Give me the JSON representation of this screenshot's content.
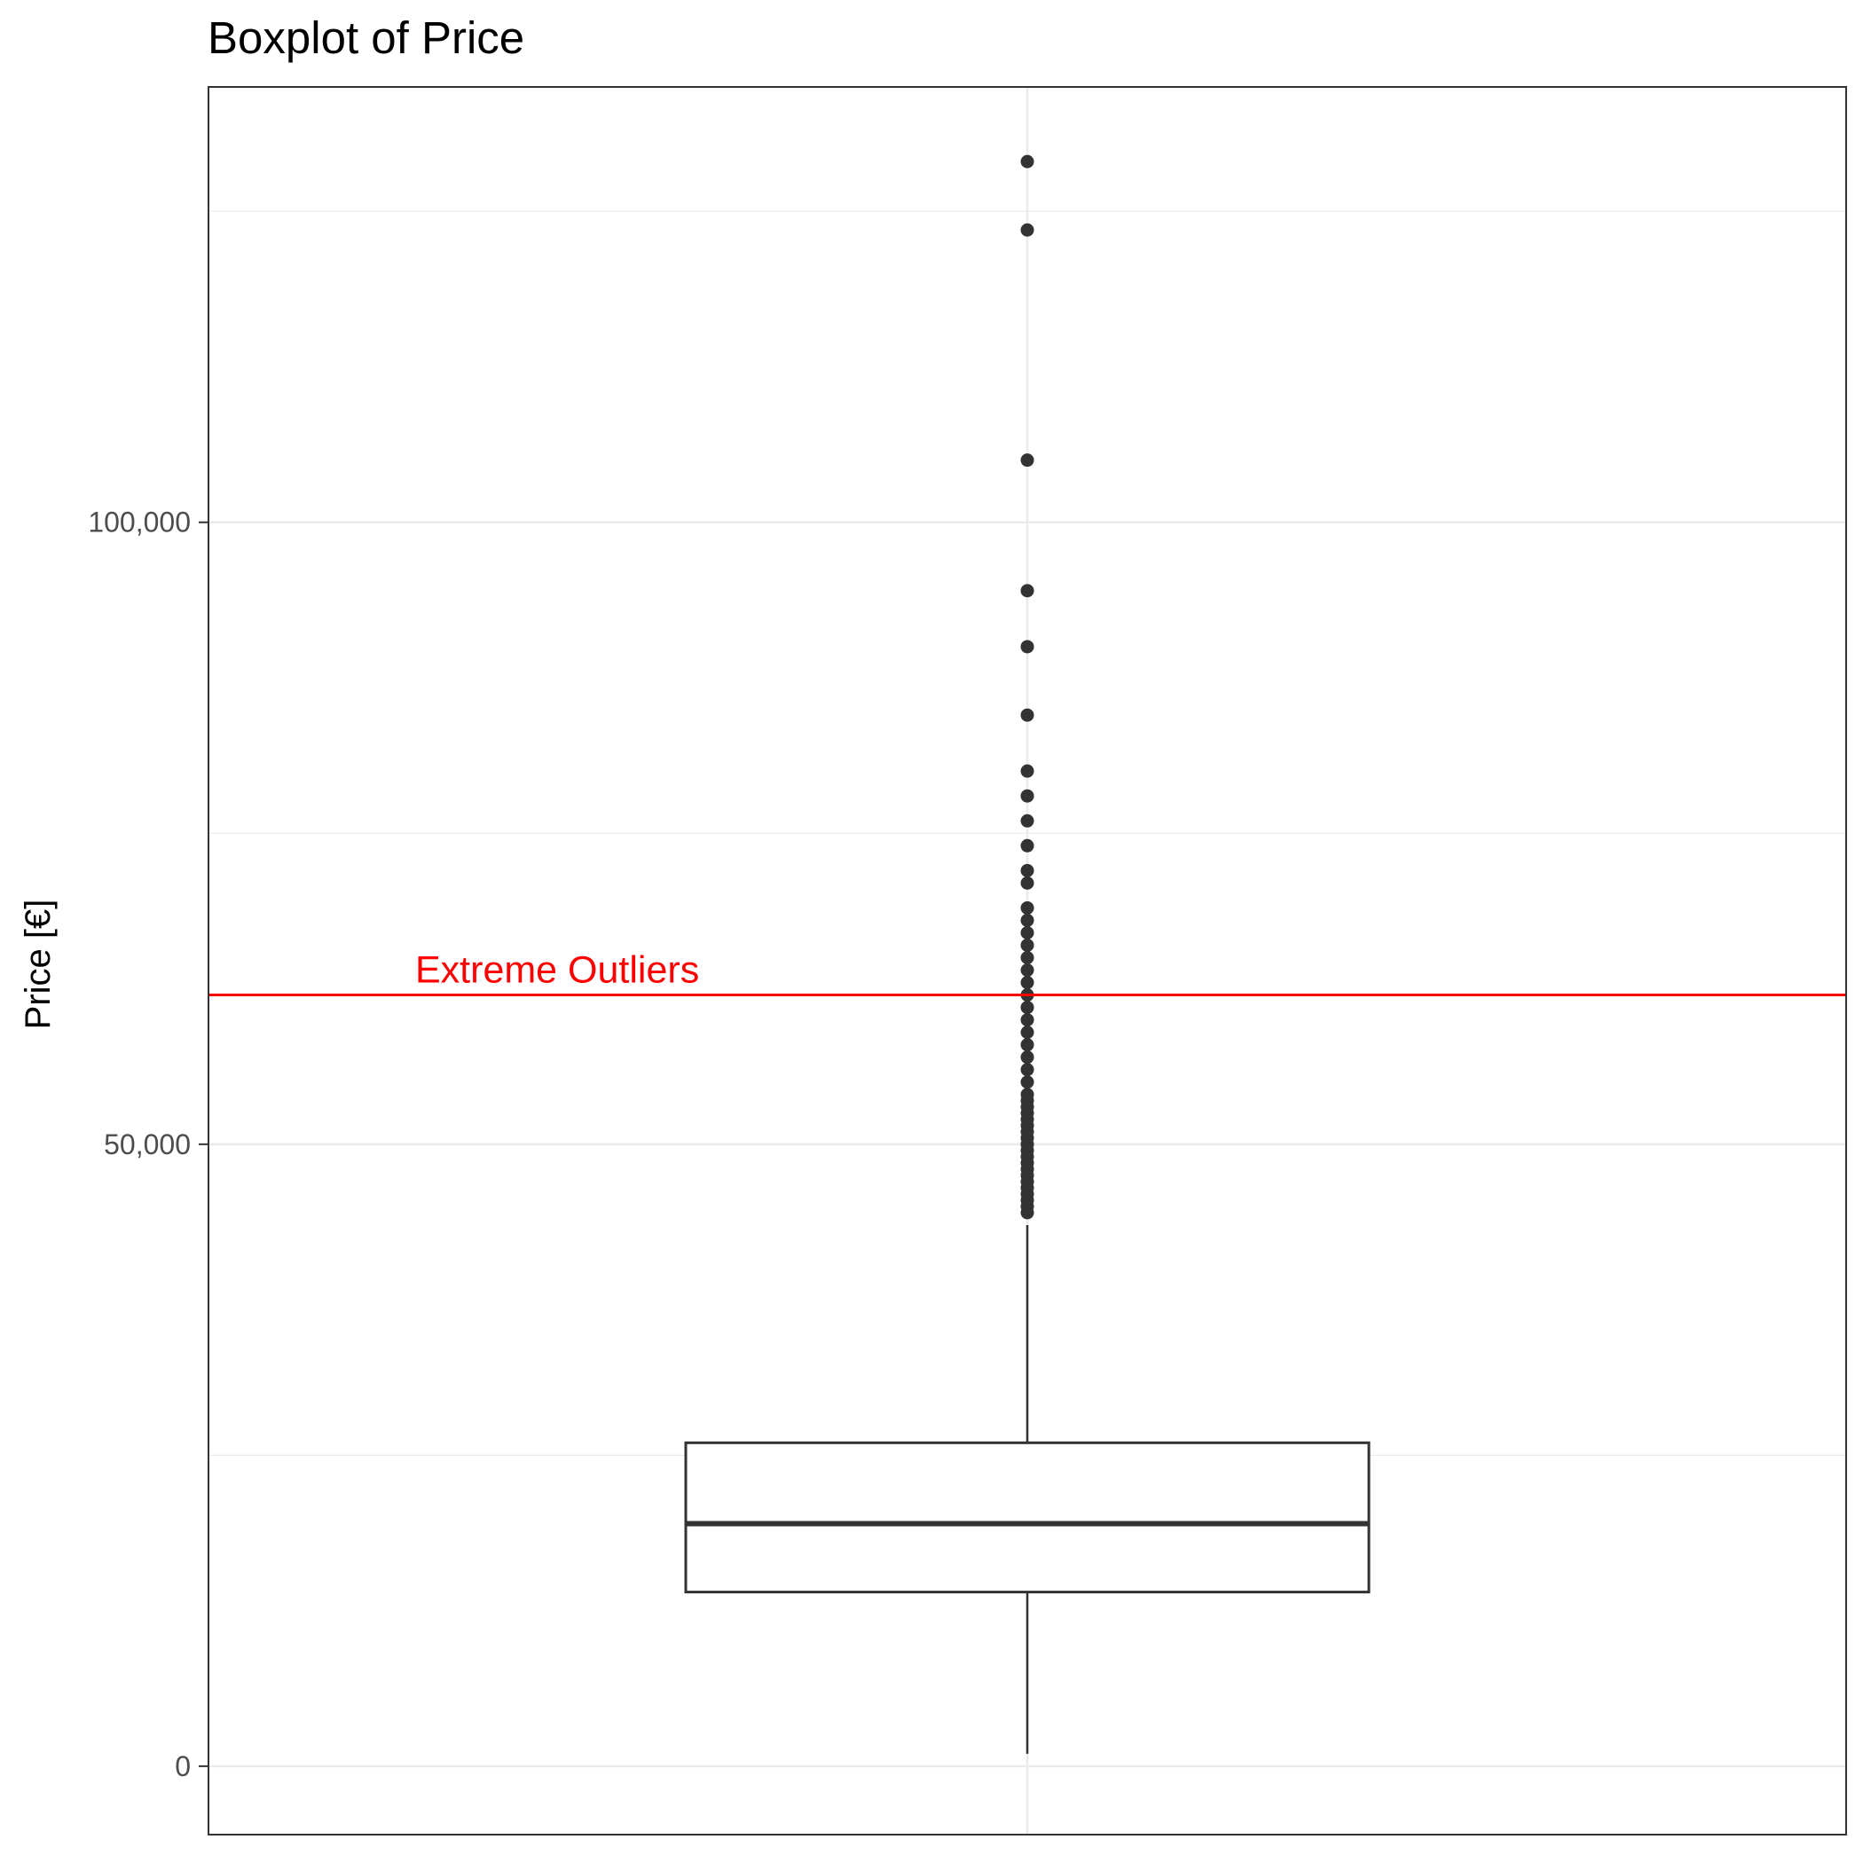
{
  "chart_data": {
    "type": "boxplot",
    "title": "Boxplot of Price",
    "xlabel": "",
    "ylabel": "Price [€]",
    "ylim": [
      -5500,
      135000
    ],
    "yticks": [
      0,
      50000,
      100000
    ],
    "ytick_labels": [
      "0",
      "50,000",
      "100,000"
    ],
    "minor_gridlines": [
      25000,
      75000,
      125000
    ],
    "grid": true,
    "box": {
      "lower_whisker": 1000,
      "q1": 14000,
      "median": 19500,
      "q3": 26000,
      "upper_whisker": 43500,
      "outliers": [
        44500,
        45000,
        45500,
        46000,
        46500,
        47000,
        47500,
        48000,
        48500,
        49000,
        49500,
        50000,
        50500,
        51000,
        51500,
        52000,
        52500,
        53000,
        53500,
        54000,
        55000,
        56000,
        57000,
        58000,
        59000,
        60000,
        61000,
        62000,
        63000,
        64000,
        65000,
        66000,
        67000,
        68000,
        69000,
        71000,
        72000,
        74000,
        76000,
        78000,
        80000,
        84500,
        90000,
        94500,
        105000,
        123500,
        129000
      ]
    },
    "reference_line": {
      "value": 62000,
      "label": "Extreme Outliers",
      "color": "#ff0000"
    },
    "colors": {
      "box_stroke": "#333333",
      "point": "#333333",
      "grid": "#ebebeb",
      "panel_border": "#333333"
    }
  }
}
